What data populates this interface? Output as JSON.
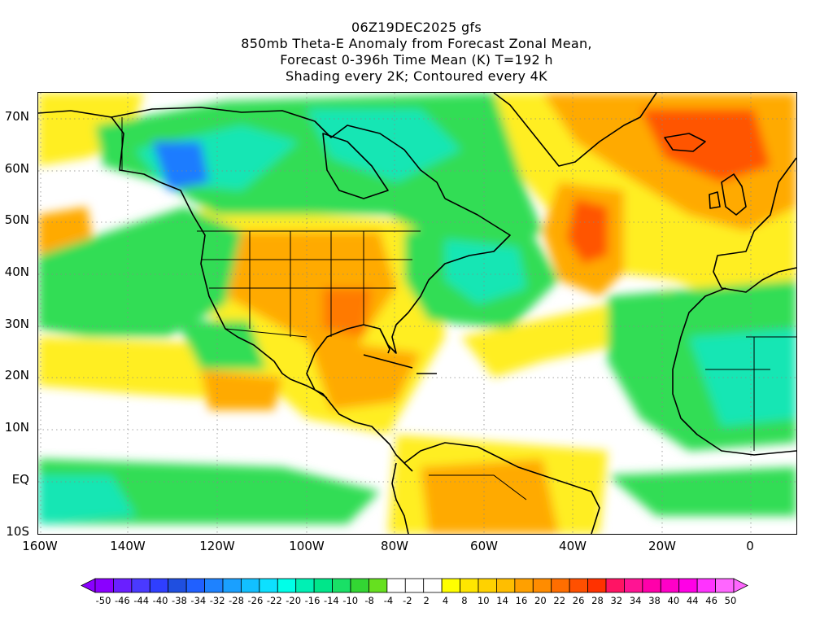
{
  "title": {
    "line1": "06Z19DEC2025 gfs",
    "line2": "850mb Theta-E Anomaly from Forecast Zonal Mean,",
    "line3": "Forecast 0-396h Time Mean (K) T=192 h",
    "line4": "Shading every 2K; Contoured every 4K"
  },
  "lat_labels": [
    "70N",
    "60N",
    "50N",
    "40N",
    "30N",
    "20N",
    "10N",
    "EQ",
    "10S"
  ],
  "lon_labels": [
    "160W",
    "140W",
    "120W",
    "100W",
    "80W",
    "60W",
    "40W",
    "20W",
    "0"
  ],
  "colorbar": {
    "labels": [
      "-50",
      "-46",
      "-44",
      "-40",
      "-38",
      "-34",
      "-32",
      "-28",
      "-26",
      "-22",
      "-20",
      "-16",
      "-14",
      "-10",
      "-8",
      "-4",
      "-2",
      "2",
      "4",
      "8",
      "10",
      "14",
      "16",
      "20",
      "22",
      "26",
      "28",
      "32",
      "34",
      "38",
      "40",
      "44",
      "46",
      "50"
    ],
    "colors": [
      "#8a00ff",
      "#6a1fff",
      "#4a3aff",
      "#2f3fff",
      "#1f4fe0",
      "#2060ff",
      "#1e82ff",
      "#1aa0ff",
      "#12c0ff",
      "#0de0ff",
      "#00ffe8",
      "#00f0b4",
      "#00e68a",
      "#19e066",
      "#33d633",
      "#66e01f",
      "#ffffff",
      "#ffffff",
      "#ffffff",
      "#ffff00",
      "#ffe600",
      "#ffd200",
      "#ffbe00",
      "#ffa000",
      "#ff8c00",
      "#ff6e00",
      "#ff5000",
      "#ff3200",
      "#ff1464",
      "#ff1493",
      "#ff00aa",
      "#ff00c8",
      "#ff00e6",
      "#ff33ff",
      "#ff66ff"
    ]
  },
  "legend_colors": {
    "green": "#33dd55",
    "cyan": "#14e6b4",
    "blue": "#1e7bff",
    "yellow": "#ffee22",
    "orange": "#ffaa00",
    "red": "#ff5500"
  }
}
